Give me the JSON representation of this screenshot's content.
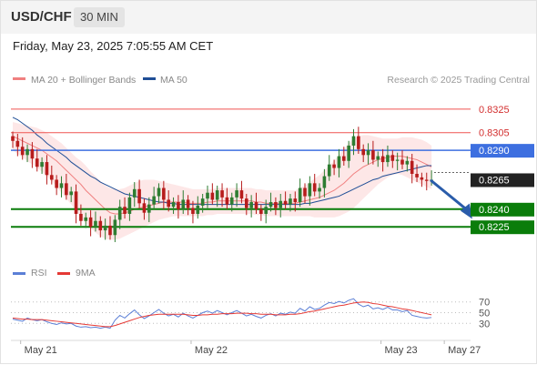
{
  "header": {
    "symbol": "USD/CHF",
    "timeframe": "30 MIN",
    "datetime": "Friday, May 23, 2025 7:05:55 AM CET"
  },
  "colors": {
    "candle_up": "#2e7d32",
    "candle_down": "#b71c1c",
    "ma20": "#f08080",
    "bollinger_fill": "#fde3e3",
    "ma50": "#1f4e96",
    "resistance": "#ef5350",
    "pivot": "#3d6fe0",
    "support": "#0a7d0a",
    "arrow": "#2a5caa",
    "rsi": "#5b7fd6",
    "rsi_ma": "#e53935"
  },
  "chart_data": [
    {
      "type": "candlestick",
      "legend": [
        {
          "label": "MA 20 + Bollinger Bands",
          "color": "#f08080"
        },
        {
          "label": "MA 50",
          "color": "#1f4e96"
        }
      ],
      "watermark": "Research © 2025 Trading Central",
      "ylim": [
        0.8195,
        0.8345
      ],
      "x_ticks": [
        {
          "label": "May 21",
          "index": 2
        },
        {
          "label": "May 22",
          "index": 37
        },
        {
          "label": "May 23",
          "index": 76
        },
        {
          "label": "May 27",
          "index": 89
        }
      ],
      "levels": [
        {
          "label": "0.8325",
          "value": 0.8325,
          "kind": "resistance"
        },
        {
          "label": "0.8305",
          "value": 0.8305,
          "kind": "resistance"
        },
        {
          "label": "0.8290",
          "value": 0.829,
          "kind": "pivot"
        },
        {
          "label": "0.8265",
          "value": 0.8265,
          "kind": "last"
        },
        {
          "label": "0.8240",
          "value": 0.824,
          "kind": "support"
        },
        {
          "label": "0.8225",
          "value": 0.8225,
          "kind": "support"
        }
      ],
      "forecast_arrow": {
        "from_index": 86,
        "from": 0.8264,
        "to_index": 94,
        "to": 0.8234
      },
      "candles": [
        [
          0.8302,
          0.8298
        ],
        [
          0.8298,
          0.8293
        ],
        [
          0.8293,
          0.8286
        ],
        [
          0.8286,
          0.8291
        ],
        [
          0.8291,
          0.8283
        ],
        [
          0.8283,
          0.8276
        ],
        [
          0.8276,
          0.828
        ],
        [
          0.828,
          0.8269
        ],
        [
          0.8269,
          0.8265
        ],
        [
          0.8265,
          0.8258
        ],
        [
          0.8258,
          0.8262
        ],
        [
          0.8262,
          0.8252
        ],
        [
          0.8252,
          0.8255
        ],
        [
          0.8255,
          0.8236
        ],
        [
          0.8236,
          0.823
        ],
        [
          0.823,
          0.8233
        ],
        [
          0.8233,
          0.8225
        ],
        [
          0.8225,
          0.823
        ],
        [
          0.823,
          0.8222
        ],
        [
          0.8222,
          0.8226
        ],
        [
          0.8226,
          0.8218
        ],
        [
          0.8218,
          0.8231
        ],
        [
          0.8231,
          0.8242
        ],
        [
          0.8242,
          0.8236
        ],
        [
          0.8236,
          0.825
        ],
        [
          0.825,
          0.8257
        ],
        [
          0.8257,
          0.8245
        ],
        [
          0.8245,
          0.8237
        ],
        [
          0.8237,
          0.8244
        ],
        [
          0.8244,
          0.8251
        ],
        [
          0.8251,
          0.8258
        ],
        [
          0.8258,
          0.8248
        ],
        [
          0.8248,
          0.8242
        ],
        [
          0.8242,
          0.8246
        ],
        [
          0.8246,
          0.824
        ],
        [
          0.824,
          0.8248
        ],
        [
          0.8248,
          0.8241
        ],
        [
          0.8241,
          0.8236
        ],
        [
          0.8236,
          0.8243
        ],
        [
          0.8243,
          0.8249
        ],
        [
          0.8249,
          0.8254
        ],
        [
          0.8254,
          0.8248
        ],
        [
          0.8248,
          0.8256
        ],
        [
          0.8256,
          0.825
        ],
        [
          0.825,
          0.8244
        ],
        [
          0.8244,
          0.825
        ],
        [
          0.825,
          0.8256
        ],
        [
          0.8256,
          0.8249
        ],
        [
          0.8249,
          0.8241
        ],
        [
          0.8241,
          0.8246
        ],
        [
          0.8246,
          0.824
        ],
        [
          0.824,
          0.8236
        ],
        [
          0.8236,
          0.8242
        ],
        [
          0.8242,
          0.8246
        ],
        [
          0.8246,
          0.8241
        ],
        [
          0.8241,
          0.8247
        ],
        [
          0.8247,
          0.8244
        ],
        [
          0.8244,
          0.8249
        ],
        [
          0.8249,
          0.8246
        ],
        [
          0.8246,
          0.8258
        ],
        [
          0.8258,
          0.8251
        ],
        [
          0.8251,
          0.8262
        ],
        [
          0.8262,
          0.8255
        ],
        [
          0.8255,
          0.8258
        ],
        [
          0.8258,
          0.8268
        ],
        [
          0.8268,
          0.8278
        ],
        [
          0.8278,
          0.8275
        ],
        [
          0.8275,
          0.8285
        ],
        [
          0.8285,
          0.8281
        ],
        [
          0.8281,
          0.8294
        ],
        [
          0.8294,
          0.8302
        ],
        [
          0.8302,
          0.8291
        ],
        [
          0.8291,
          0.8286
        ],
        [
          0.8286,
          0.829
        ],
        [
          0.829,
          0.8282
        ],
        [
          0.8282,
          0.8285
        ],
        [
          0.8285,
          0.828
        ],
        [
          0.828,
          0.8286
        ],
        [
          0.8286,
          0.8281
        ],
        [
          0.8281,
          0.8282
        ],
        [
          0.8282,
          0.8278
        ],
        [
          0.8278,
          0.8281
        ],
        [
          0.8281,
          0.827
        ],
        [
          0.827,
          0.8267
        ],
        [
          0.8267,
          0.8265
        ],
        [
          0.8265,
          0.8264
        ],
        [
          0.8264,
          0.8265
        ]
      ],
      "ma50": [
        0.8318,
        0.8316,
        0.8313,
        0.831,
        0.8307,
        0.8303,
        0.83,
        0.8296,
        0.8293,
        0.829,
        0.8287,
        0.8284,
        0.828,
        0.8277,
        0.8274,
        0.8271,
        0.8268,
        0.8266,
        0.8263,
        0.8261,
        0.8259,
        0.8257,
        0.8255,
        0.8253,
        0.8252,
        0.8251,
        0.825,
        0.8249,
        0.8248,
        0.8247,
        0.8246,
        0.8246,
        0.8245,
        0.8245,
        0.8244,
        0.8244,
        0.8244,
        0.8244,
        0.8244,
        0.8244,
        0.8244,
        0.8244,
        0.8244,
        0.8244,
        0.8244,
        0.8244,
        0.8244,
        0.8244,
        0.8244,
        0.8244,
        0.8244,
        0.8244,
        0.8244,
        0.8244,
        0.8244,
        0.8244,
        0.8244,
        0.8244,
        0.8244,
        0.8244,
        0.8245,
        0.8245,
        0.8246,
        0.8247,
        0.8248,
        0.8249,
        0.825,
        0.8251,
        0.8253,
        0.8255,
        0.8257,
        0.8259,
        0.8261,
        0.8263,
        0.8265,
        0.8266,
        0.8268,
        0.8269,
        0.827,
        0.8271,
        0.8272,
        0.8273,
        0.8274,
        0.8275,
        0.8276,
        0.8277,
        0.8277
      ],
      "ma20": [
        0.8302,
        0.83,
        0.8298,
        0.8296,
        0.8294,
        0.8292,
        0.829,
        0.8287,
        0.8284,
        0.8281,
        0.8277,
        0.8273,
        0.8269,
        0.8265,
        0.8261,
        0.8256,
        0.8252,
        0.8248,
        0.8244,
        0.824,
        0.8237,
        0.8236,
        0.8236,
        0.8237,
        0.8238,
        0.824,
        0.8241,
        0.8242,
        0.8243,
        0.8244,
        0.8245,
        0.8246,
        0.8246,
        0.8246,
        0.8246,
        0.8246,
        0.8245,
        0.8245,
        0.8245,
        0.8245,
        0.8246,
        0.8246,
        0.8247,
        0.8247,
        0.8247,
        0.8247,
        0.8247,
        0.8247,
        0.8247,
        0.8247,
        0.8246,
        0.8246,
        0.8245,
        0.8245,
        0.8245,
        0.8245,
        0.8245,
        0.8245,
        0.8245,
        0.8246,
        0.8247,
        0.8248,
        0.8249,
        0.825,
        0.8252,
        0.8254,
        0.8256,
        0.8259,
        0.8262,
        0.8266,
        0.827,
        0.8273,
        0.8276,
        0.8278,
        0.828,
        0.8282,
        0.8283,
        0.8284,
        0.8285,
        0.8285,
        0.8285,
        0.8284,
        0.8283,
        0.8282,
        0.828,
        0.8278,
        0.8276
      ],
      "bb_upper": [
        0.8314,
        0.8313,
        0.8312,
        0.8311,
        0.831,
        0.8309,
        0.8307,
        0.8305,
        0.8302,
        0.8299,
        0.8296,
        0.8292,
        0.8288,
        0.8284,
        0.8281,
        0.8277,
        0.8272,
        0.8268,
        0.8264,
        0.826,
        0.8258,
        0.8257,
        0.8257,
        0.8258,
        0.826,
        0.8262,
        0.8264,
        0.8265,
        0.8265,
        0.8265,
        0.8264,
        0.8263,
        0.8262,
        0.8261,
        0.826,
        0.8259,
        0.8258,
        0.8257,
        0.8257,
        0.8257,
        0.8257,
        0.8257,
        0.8258,
        0.8258,
        0.8258,
        0.8258,
        0.8258,
        0.8258,
        0.8258,
        0.8258,
        0.8257,
        0.8257,
        0.8256,
        0.8256,
        0.8256,
        0.8256,
        0.8256,
        0.8256,
        0.8256,
        0.8258,
        0.826,
        0.8263,
        0.8266,
        0.8269,
        0.8273,
        0.8277,
        0.8281,
        0.8286,
        0.8291,
        0.8296,
        0.83,
        0.8302,
        0.8303,
        0.8303,
        0.8302,
        0.8301,
        0.83,
        0.83,
        0.83,
        0.83,
        0.8301,
        0.8301,
        0.8301,
        0.83,
        0.8299,
        0.8297,
        0.8294
      ],
      "bb_lower": [
        0.829,
        0.8287,
        0.8284,
        0.8281,
        0.8278,
        0.8275,
        0.8272,
        0.8268,
        0.8264,
        0.8259,
        0.8254,
        0.8249,
        0.8244,
        0.8239,
        0.8233,
        0.8228,
        0.8224,
        0.822,
        0.8217,
        0.8215,
        0.8214,
        0.8214,
        0.8215,
        0.8217,
        0.8219,
        0.8221,
        0.8223,
        0.8225,
        0.8227,
        0.8229,
        0.8231,
        0.8232,
        0.8233,
        0.8234,
        0.8234,
        0.8234,
        0.8234,
        0.8234,
        0.8234,
        0.8234,
        0.8235,
        0.8235,
        0.8236,
        0.8236,
        0.8236,
        0.8236,
        0.8236,
        0.8236,
        0.8236,
        0.8236,
        0.8235,
        0.8235,
        0.8234,
        0.8234,
        0.8234,
        0.8234,
        0.8234,
        0.8234,
        0.8234,
        0.8234,
        0.8234,
        0.8234,
        0.8233,
        0.8233,
        0.8233,
        0.8233,
        0.8233,
        0.8234,
        0.8236,
        0.8238,
        0.8241,
        0.8245,
        0.8249,
        0.8253,
        0.8257,
        0.8261,
        0.8264,
        0.8267,
        0.8269,
        0.827,
        0.8269,
        0.8267,
        0.8265,
        0.8263,
        0.8261,
        0.8259,
        0.8257
      ]
    },
    {
      "type": "line",
      "legend": [
        {
          "label": "RSI",
          "color": "#5b7fd6"
        },
        {
          "label": "9MA",
          "color": "#e53935"
        }
      ],
      "y_ticks": [
        70,
        50,
        30
      ],
      "ylim": [
        0,
        100
      ],
      "series": [
        {
          "name": "RSI",
          "values": [
            38,
            36,
            34,
            40,
            37,
            35,
            37,
            33,
            30,
            28,
            31,
            29,
            30,
            25,
            23,
            24,
            22,
            23,
            21,
            23,
            21,
            36,
            45,
            40,
            48,
            55,
            46,
            39,
            44,
            50,
            56,
            49,
            44,
            47,
            42,
            49,
            44,
            40,
            45,
            50,
            53,
            49,
            54,
            50,
            46,
            50,
            54,
            49,
            44,
            47,
            43,
            40,
            45,
            48,
            44,
            49,
            47,
            51,
            49,
            58,
            53,
            61,
            56,
            58,
            64,
            69,
            67,
            71,
            68,
            73,
            76,
            66,
            61,
            64,
            57,
            59,
            56,
            60,
            55,
            55,
            52,
            54,
            45,
            43,
            41,
            40,
            41
          ]
        },
        {
          "name": "9MA",
          "values": [
            40,
            39,
            38,
            38,
            37,
            37,
            37,
            36,
            35,
            34,
            33,
            32,
            31,
            30,
            29,
            28,
            27,
            26,
            25,
            24,
            24,
            26,
            29,
            32,
            35,
            38,
            41,
            43,
            45,
            46,
            47,
            47,
            47,
            47,
            47,
            47,
            46,
            45,
            45,
            46,
            46,
            47,
            47,
            48,
            48,
            48,
            49,
            49,
            49,
            48,
            48,
            47,
            47,
            47,
            46,
            46,
            46,
            47,
            47,
            48,
            50,
            52,
            53,
            55,
            57,
            59,
            61,
            63,
            64,
            66,
            68,
            69,
            70,
            69,
            67,
            66,
            64,
            62,
            61,
            59,
            57,
            56,
            54,
            52,
            50,
            48,
            46
          ]
        }
      ]
    }
  ]
}
